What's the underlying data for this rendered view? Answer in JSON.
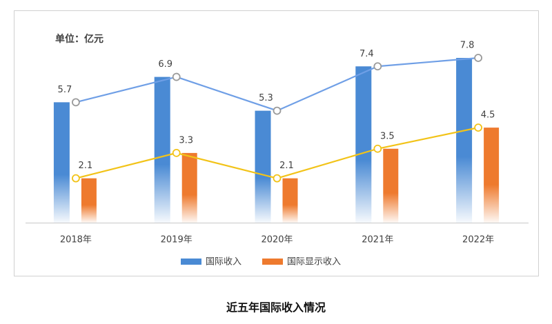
{
  "chart_data": {
    "type": "bar-line",
    "unit_label": "单位：亿元",
    "caption": "近五年国际收入情况",
    "categories": [
      "2018年",
      "2019年",
      "2020年",
      "2021年",
      "2022年"
    ],
    "series": [
      {
        "name": "国际收入",
        "color": "#4a8ad4",
        "line_color": "#6f9fe6",
        "marker_color": "#9a9a9a",
        "values": [
          5.7,
          6.9,
          5.3,
          7.4,
          7.8
        ]
      },
      {
        "name": "国际显示收入",
        "color": "#ee7a2e",
        "line_color": "#f2c318",
        "marker_color": "#f2c318",
        "values": [
          2.1,
          3.3,
          2.1,
          3.5,
          4.5
        ]
      }
    ],
    "legend": "bottom"
  }
}
